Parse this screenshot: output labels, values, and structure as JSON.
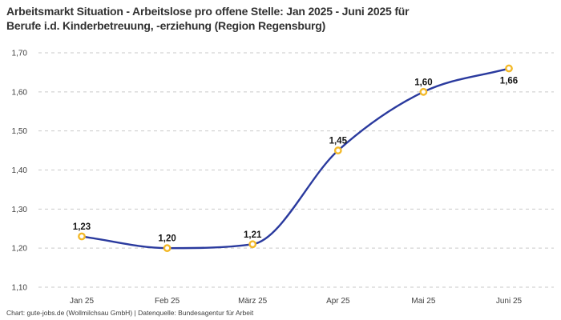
{
  "title": {
    "lines": [
      "Arbeitsmarkt Situation - Arbeitslose pro offene Stelle: Jan 2025 - Juni 2025 für",
      "Berufe i.d. Kinderbetreuung, -erziehung (Region Regensburg)"
    ],
    "full": "Arbeitsmarkt Situation - Arbeitslose pro offene Stelle: Jan 2025 - Juni 2025 für Berufe i.d. Kinderbetreuung, -erziehung (Region Regensburg)"
  },
  "footer": "Chart: gute-jobs.de (Wollmilchsau GmbH) | Datenquelle: Bundesagentur für Arbeit",
  "chart_data": {
    "type": "line",
    "title": "Arbeitsmarkt Situation - Arbeitslose pro offene Stelle: Jan 2025 - Juni 2025 für Berufe i.d. Kinderbetreuung, -erziehung (Region Regensburg)",
    "categories": [
      "Jan 25",
      "Feb 25",
      "März 25",
      "Apr 25",
      "Mai 25",
      "Juni 25"
    ],
    "values": [
      1.23,
      1.2,
      1.21,
      1.45,
      1.6,
      1.66
    ],
    "point_labels": [
      "1,23",
      "1,20",
      "1,21",
      "1,45",
      "1,60",
      "1,66"
    ],
    "point_label_placement": [
      "above",
      "above",
      "above",
      "above",
      "above",
      "below"
    ],
    "y_ticks": [
      1.7,
      1.6,
      1.5,
      1.4,
      1.3,
      1.2,
      1.1
    ],
    "y_tick_labels": [
      "1,70",
      "1,60",
      "1,50",
      "1,40",
      "1,30",
      "1,20",
      "1,10"
    ],
    "ylim": [
      1.1,
      1.7
    ],
    "xlabel": "",
    "ylabel": "",
    "legend": "none",
    "grid": "horizontal-dashed",
    "line_color": "#2a3a9e",
    "marker_stroke_color": "#f3b929",
    "marker_fill_color": "#ffffff",
    "source_note": "Chart: gute-jobs.de (Wollmilchsau GmbH) | Datenquelle: Bundesagentur für Arbeit"
  },
  "colors": {
    "background": "#ffffff",
    "title_text": "#323232",
    "axis_text": "#404040",
    "grid_line": "#c9c9c9",
    "point_label_text": "#161616"
  }
}
